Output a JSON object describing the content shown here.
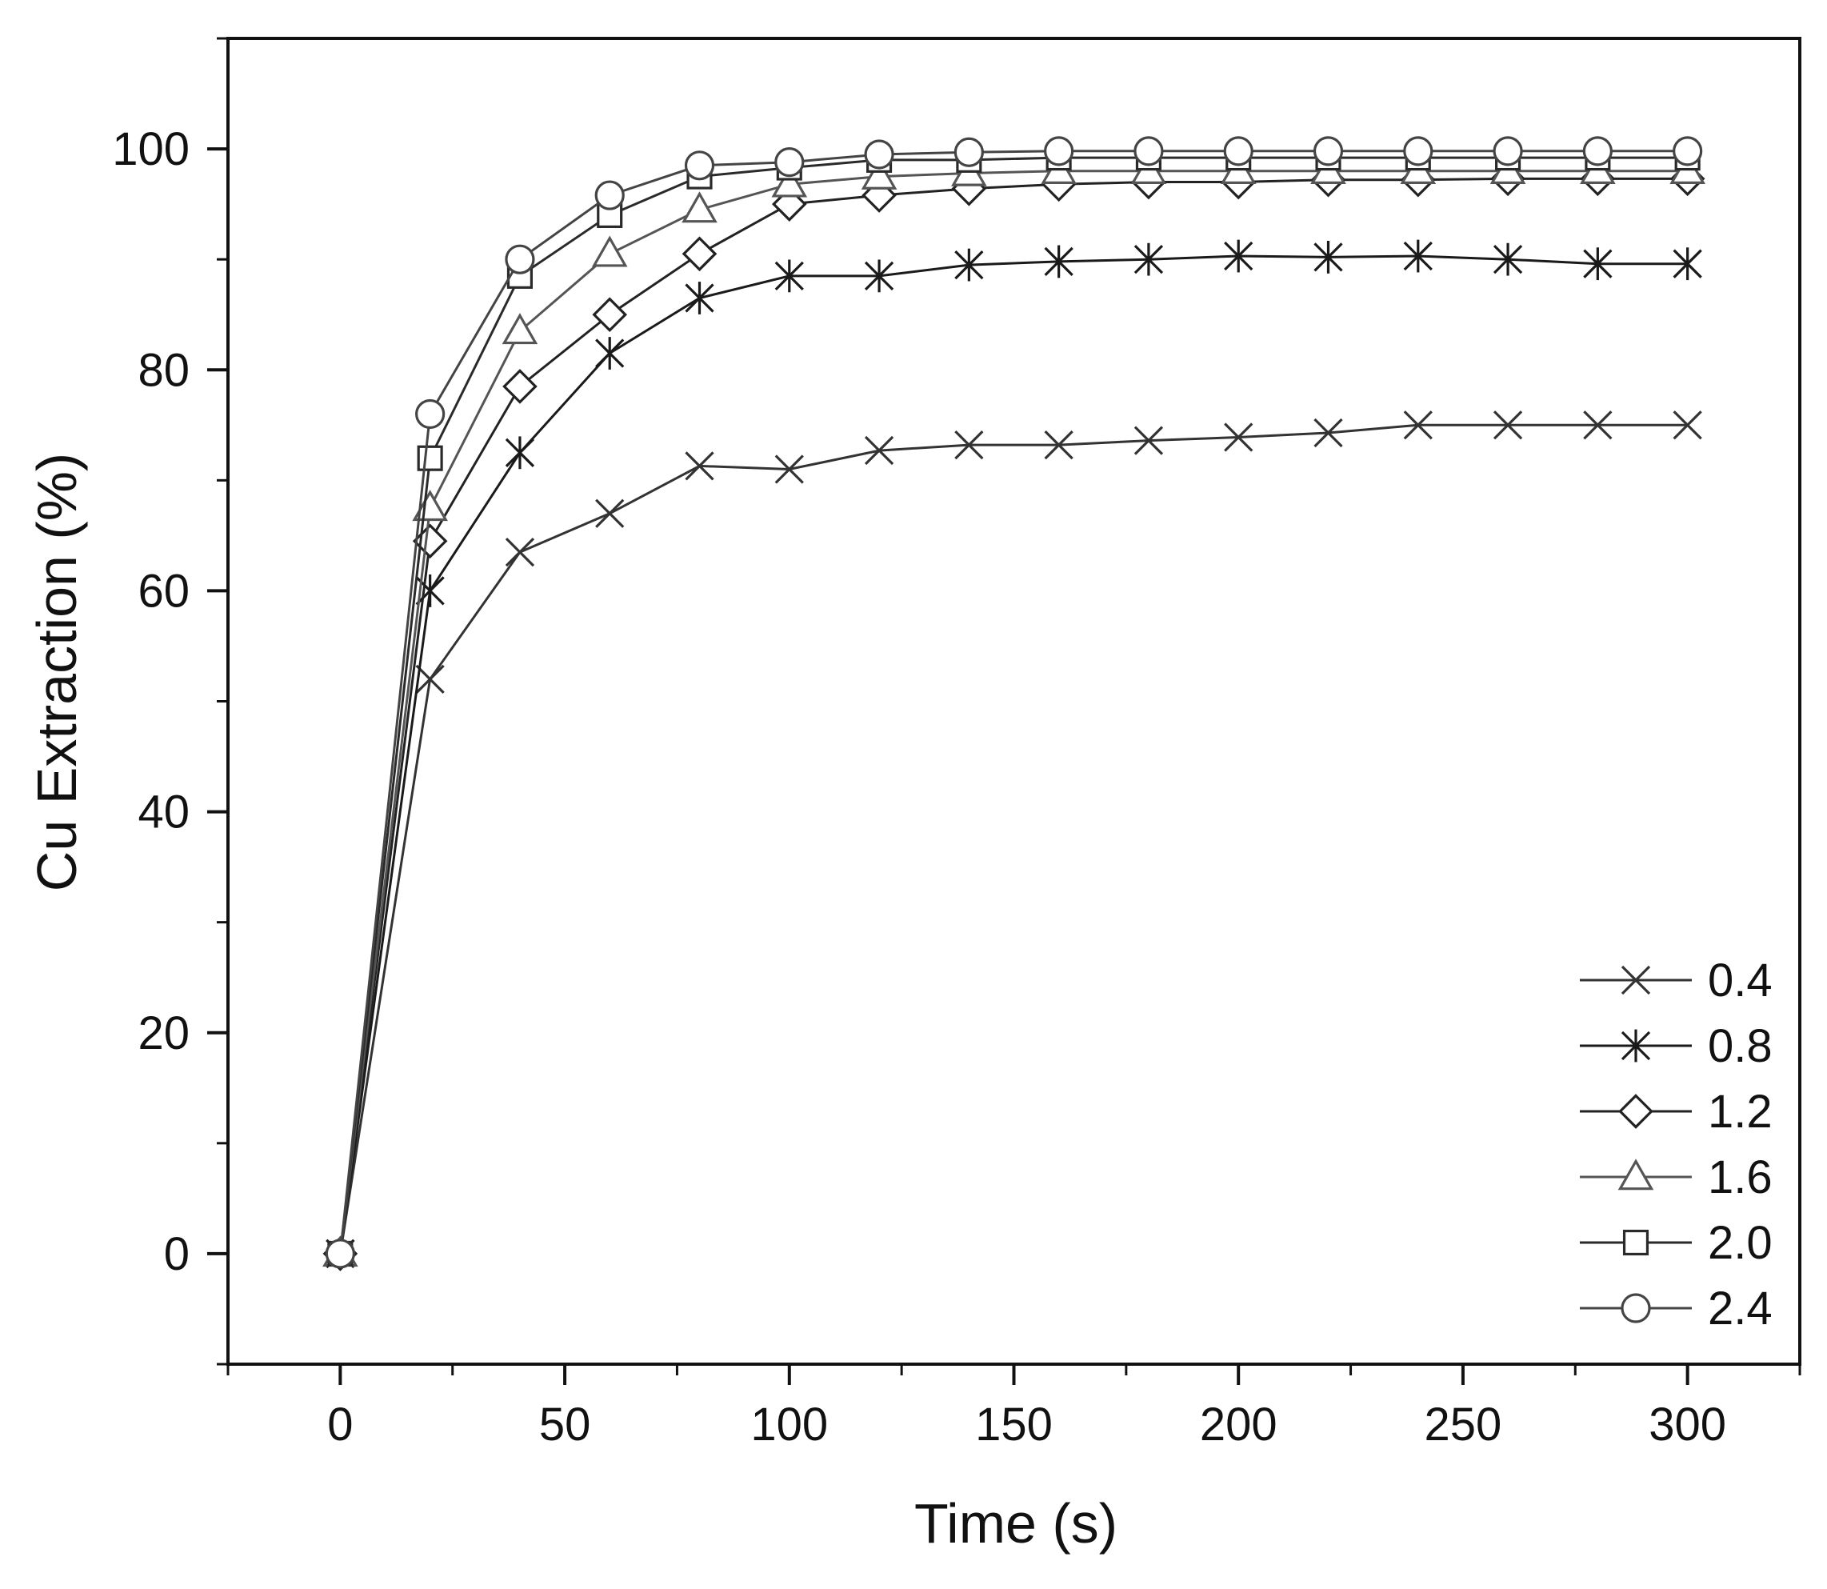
{
  "chart_data": {
    "type": "line",
    "title": "",
    "xlabel": "Time (s)",
    "ylabel": "Cu Extraction (%)",
    "xlim": [
      -25,
      325
    ],
    "ylim": [
      -10,
      110
    ],
    "xticks": [
      0,
      50,
      100,
      150,
      200,
      250,
      300
    ],
    "yticks": [
      0,
      20,
      40,
      60,
      80,
      100
    ],
    "xtick_labels": [
      "0",
      "50",
      "100",
      "150",
      "200",
      "250",
      "300"
    ],
    "ytick_labels": [
      "0",
      "20",
      "40",
      "60",
      "80",
      "100"
    ],
    "grid": false,
    "legend_position": "bottom-right",
    "x": [
      0,
      20,
      40,
      60,
      80,
      100,
      120,
      140,
      160,
      180,
      200,
      220,
      240,
      260,
      280,
      300
    ],
    "series": [
      {
        "name": "0.4",
        "marker": "x",
        "color": "#333333",
        "values": [
          0,
          52,
          63.5,
          67,
          71.3,
          71,
          72.7,
          73.2,
          73.2,
          73.6,
          73.9,
          74.3,
          75,
          75,
          75,
          75
        ]
      },
      {
        "name": "0.8",
        "marker": "asterisk",
        "color": "#1a1a1a",
        "values": [
          0,
          60,
          72.5,
          81.5,
          86.5,
          88.5,
          88.5,
          89.5,
          89.8,
          90,
          90.3,
          90.2,
          90.3,
          90,
          89.6,
          89.6
        ]
      },
      {
        "name": "1.2",
        "marker": "diamond",
        "color": "#222222",
        "values": [
          0,
          64.5,
          78.5,
          85,
          90.5,
          95,
          95.8,
          96.4,
          96.8,
          97,
          97,
          97.2,
          97.2,
          97.3,
          97.3,
          97.3
        ]
      },
      {
        "name": "1.6",
        "marker": "triangle",
        "color": "#555555",
        "values": [
          0,
          67.5,
          83.5,
          90.5,
          94.5,
          96.8,
          97.5,
          97.8,
          98,
          98,
          98,
          98,
          98,
          98,
          98,
          98
        ]
      },
      {
        "name": "2.0",
        "marker": "square",
        "color": "#2a2a2a",
        "values": [
          0,
          72,
          88.5,
          94,
          97.5,
          98.3,
          99,
          99,
          99.2,
          99.2,
          99.2,
          99.2,
          99.2,
          99.2,
          99.2,
          99.2
        ]
      },
      {
        "name": "2.4",
        "marker": "circle",
        "color": "#444444",
        "values": [
          0,
          76,
          90,
          95.8,
          98.5,
          98.8,
          99.5,
          99.7,
          99.8,
          99.8,
          99.8,
          99.8,
          99.8,
          99.8,
          99.8,
          99.8
        ]
      }
    ]
  }
}
